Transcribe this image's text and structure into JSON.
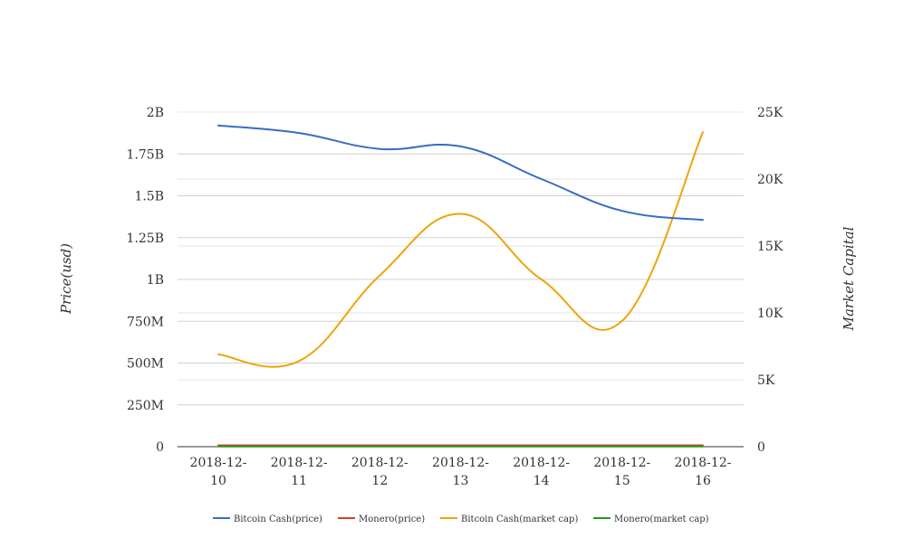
{
  "chart_data": {
    "type": "line",
    "title": "",
    "x": [
      "2018-12-10",
      "2018-12-11",
      "2018-12-12",
      "2018-12-13",
      "2018-12-14",
      "2018-12-15",
      "2018-12-16"
    ],
    "x_tick_labels": [
      [
        "2018-12-",
        "10"
      ],
      [
        "2018-12-",
        "11"
      ],
      [
        "2018-12-",
        "12"
      ],
      [
        "2018-12-",
        "13"
      ],
      [
        "2018-12-",
        "14"
      ],
      [
        "2018-12-",
        "15"
      ],
      [
        "2018-12-",
        "16"
      ]
    ],
    "ylabel_left": "Price(usd)",
    "ylabel_right": "Market Capital",
    "ylim_left": [
      0,
      2000000000
    ],
    "ylim_right": [
      0,
      25000
    ],
    "yticks_left": [
      {
        "value": 0,
        "label": "0"
      },
      {
        "value": 250000000,
        "label": "250M"
      },
      {
        "value": 500000000,
        "label": "500M"
      },
      {
        "value": 750000000,
        "label": "750M"
      },
      {
        "value": 1000000000,
        "label": "1B"
      },
      {
        "value": 1250000000,
        "label": "1.25B"
      },
      {
        "value": 1500000000,
        "label": "1.5B"
      },
      {
        "value": 1750000000,
        "label": "1.75B"
      },
      {
        "value": 2000000000,
        "label": "2B"
      }
    ],
    "yticks_right": [
      {
        "value": 0,
        "label": "0"
      },
      {
        "value": 5000,
        "label": "5K"
      },
      {
        "value": 10000,
        "label": "10K"
      },
      {
        "value": 15000,
        "label": "15K"
      },
      {
        "value": 20000,
        "label": "20K"
      },
      {
        "value": 25000,
        "label": "25K"
      }
    ],
    "grid": true,
    "legend_position": "bottom",
    "series": [
      {
        "name": "Bitcoin Cash(price)",
        "axis": "left",
        "color": "#3a6bc4",
        "values": [
          1920000000,
          1875000000,
          1780000000,
          1795000000,
          1600000000,
          1410000000,
          1355000000
        ]
      },
      {
        "name": "Monero(price)",
        "axis": "left",
        "color": "#d2411e",
        "values": [
          8000000,
          8000000,
          8000000,
          8000000,
          8000000,
          8000000,
          8000000
        ]
      },
      {
        "name": "Bitcoin Cash(market cap)",
        "axis": "right",
        "color": "#f0a30a",
        "values": [
          6900,
          6400,
          12800,
          17400,
          12500,
          9400,
          23500
        ]
      },
      {
        "name": "Monero(market cap)",
        "axis": "right",
        "color": "#1e9a1e",
        "values": [
          15,
          15,
          15,
          15,
          15,
          15,
          15
        ]
      }
    ]
  }
}
